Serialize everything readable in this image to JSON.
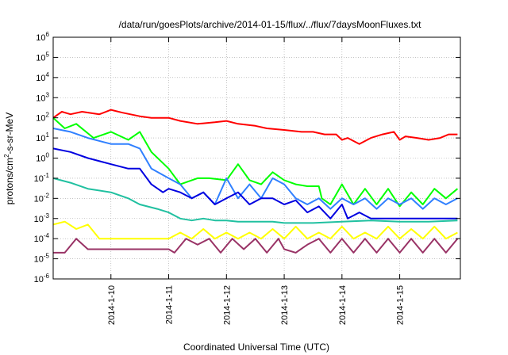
{
  "chart_data": {
    "type": "line",
    "title": "/data/run/goesPlots/archive/2014-01-15/flux/../flux/7daysMoonFluxes.txt",
    "xlabel": "Coordinated Universal Time (UTC)",
    "ylabel": {
      "prefix": "protons/cm",
      "sup": "2",
      "suffix": "-s-sr-MeV"
    },
    "yscale": "log",
    "ylim_exp": [
      -6,
      6
    ],
    "ytick_exponents": [
      -6,
      -5,
      -4,
      -3,
      -2,
      -1,
      0,
      1,
      2,
      3,
      4,
      5,
      6
    ],
    "ytick_base": "10",
    "xlim_days": [
      0,
      7.05
    ],
    "xticks": [
      {
        "pos": 1,
        "label": "2014-1-10"
      },
      {
        "pos": 2,
        "label": "2014-1-11"
      },
      {
        "pos": 3,
        "label": "2014-1-12"
      },
      {
        "pos": 4,
        "label": "2014-1-13"
      },
      {
        "pos": 5,
        "label": "2014-1-14"
      },
      {
        "pos": 6,
        "label": "2014-1-15"
      }
    ],
    "series": [
      {
        "name": "red",
        "color": "#ff0000",
        "x": [
          0,
          0.15,
          0.3,
          0.5,
          0.8,
          1.0,
          1.2,
          1.5,
          1.7,
          2.0,
          2.2,
          2.5,
          2.8,
          3.0,
          3.2,
          3.5,
          3.7,
          4.0,
          4.3,
          4.5,
          4.7,
          4.9,
          5.0,
          5.1,
          5.3,
          5.5,
          5.7,
          5.9,
          6.0,
          6.1,
          6.3,
          6.5,
          6.7,
          6.85,
          7.0
        ],
        "y": [
          100,
          200,
          150,
          200,
          150,
          250,
          180,
          120,
          100,
          100,
          70,
          50,
          60,
          70,
          50,
          40,
          30,
          25,
          20,
          20,
          15,
          15,
          8,
          10,
          5,
          10,
          15,
          20,
          8,
          12,
          10,
          8,
          10,
          15,
          15
        ]
      },
      {
        "name": "green",
        "color": "#00ff00",
        "x": [
          0,
          0.2,
          0.4,
          0.7,
          1.0,
          1.3,
          1.5,
          1.7,
          2.0,
          2.2,
          2.5,
          2.7,
          3.0,
          3.2,
          3.4,
          3.6,
          3.8,
          4.0,
          4.2,
          4.4,
          4.6,
          4.65,
          4.8,
          5.0,
          5.2,
          5.4,
          5.6,
          5.8,
          6.0,
          6.2,
          6.4,
          6.6,
          6.8,
          7.0
        ],
        "y": [
          100,
          30,
          50,
          10,
          20,
          8,
          20,
          2,
          0.3,
          0.05,
          0.1,
          0.1,
          0.08,
          0.5,
          0.08,
          0.05,
          0.2,
          0.08,
          0.05,
          0.04,
          0.04,
          0.01,
          0.005,
          0.05,
          0.005,
          0.03,
          0.005,
          0.03,
          0.004,
          0.02,
          0.005,
          0.03,
          0.01,
          0.03
        ]
      },
      {
        "name": "blue-light",
        "color": "#3080ff",
        "x": [
          0,
          0.3,
          0.6,
          1.0,
          1.3,
          1.5,
          1.7,
          2.0,
          2.2,
          2.4,
          2.6,
          2.8,
          3.0,
          3.2,
          3.4,
          3.6,
          3.8,
          4.0,
          4.2,
          4.4,
          4.6,
          4.8,
          5.0,
          5.2,
          5.4,
          5.6,
          5.8,
          6.0,
          6.2,
          6.4,
          6.6,
          6.8,
          7.0
        ],
        "y": [
          30,
          20,
          10,
          5,
          5,
          3,
          0.3,
          0.1,
          0.05,
          0.01,
          0.02,
          0.005,
          0.1,
          0.01,
          0.05,
          0.01,
          0.1,
          0.05,
          0.01,
          0.005,
          0.01,
          0.003,
          0.01,
          0.005,
          0.01,
          0.003,
          0.01,
          0.005,
          0.01,
          0.003,
          0.01,
          0.005,
          0.01
        ]
      },
      {
        "name": "blue-dark",
        "color": "#0000e0",
        "x": [
          0,
          0.3,
          0.6,
          1.0,
          1.3,
          1.5,
          1.7,
          1.9,
          2.0,
          2.2,
          2.4,
          2.6,
          2.8,
          3.0,
          3.2,
          3.4,
          3.6,
          3.8,
          4.0,
          4.2,
          4.4,
          4.6,
          4.8,
          5.0,
          5.1,
          5.3,
          5.5,
          6.0,
          6.5,
          7.0
        ],
        "y": [
          3,
          2,
          1,
          0.5,
          0.3,
          0.3,
          0.05,
          0.02,
          0.03,
          0.02,
          0.01,
          0.02,
          0.005,
          0.01,
          0.02,
          0.005,
          0.01,
          0.01,
          0.005,
          0.008,
          0.002,
          0.004,
          0.001,
          0.005,
          0.001,
          0.002,
          0.001,
          0.001,
          0.001,
          0.001
        ]
      },
      {
        "name": "teal",
        "color": "#20c0a0",
        "x": [
          0,
          0.3,
          0.6,
          1.0,
          1.3,
          1.5,
          1.8,
          2.0,
          2.2,
          2.4,
          2.6,
          2.8,
          3.0,
          3.2,
          3.5,
          3.8,
          4.0,
          4.5,
          5.0,
          5.5,
          6.0,
          6.5,
          7.0
        ],
        "y": [
          0.1,
          0.06,
          0.03,
          0.02,
          0.01,
          0.005,
          0.003,
          0.002,
          0.001,
          0.0008,
          0.001,
          0.0008,
          0.0008,
          0.0007,
          0.0007,
          0.0007,
          0.0006,
          0.0006,
          0.0007,
          0.0008,
          0.0007,
          0.0007,
          0.0008
        ]
      },
      {
        "name": "yellow",
        "color": "#ffff00",
        "x": [
          0,
          0.2,
          0.4,
          0.6,
          0.8,
          1.0,
          1.5,
          2.0,
          2.2,
          2.4,
          2.6,
          2.8,
          3.0,
          3.2,
          3.4,
          3.6,
          3.8,
          4.0,
          4.2,
          4.4,
          4.6,
          4.8,
          5.0,
          5.2,
          5.4,
          5.6,
          5.8,
          6.0,
          6.2,
          6.4,
          6.6,
          6.8,
          7.0
        ],
        "y": [
          0.0005,
          0.0007,
          0.0003,
          0.0005,
          0.0001,
          0.0001,
          0.0001,
          0.0001,
          0.0002,
          0.0001,
          0.0003,
          0.0001,
          0.0002,
          0.0001,
          0.0002,
          0.0001,
          0.0003,
          0.0001,
          0.0004,
          0.0001,
          0.0002,
          0.0001,
          0.0004,
          0.0001,
          0.0002,
          0.0001,
          0.0004,
          0.0001,
          0.0003,
          0.0001,
          0.0004,
          0.0001,
          0.0002
        ]
      },
      {
        "name": "purple",
        "color": "#993366",
        "x": [
          0,
          0.2,
          0.4,
          0.6,
          0.8,
          1.0,
          1.5,
          2.0,
          2.1,
          2.3,
          2.5,
          2.7,
          2.9,
          3.1,
          3.3,
          3.5,
          3.7,
          3.9,
          4.0,
          4.2,
          4.4,
          4.6,
          4.8,
          5.0,
          5.2,
          5.4,
          5.6,
          5.8,
          6.0,
          6.2,
          6.4,
          6.6,
          6.8,
          7.0
        ],
        "y": [
          2e-05,
          2e-05,
          0.0001,
          3e-05,
          3e-05,
          3e-05,
          3e-05,
          3e-05,
          2e-05,
          0.0001,
          5e-05,
          0.0001,
          2e-05,
          0.0001,
          3e-05,
          0.0001,
          2e-05,
          0.0001,
          3e-05,
          2e-05,
          5e-05,
          0.0001,
          2e-05,
          0.0001,
          2e-05,
          0.0001,
          2e-05,
          0.0001,
          2e-05,
          0.0001,
          2e-05,
          0.0001,
          2e-05,
          0.0001
        ]
      }
    ]
  }
}
